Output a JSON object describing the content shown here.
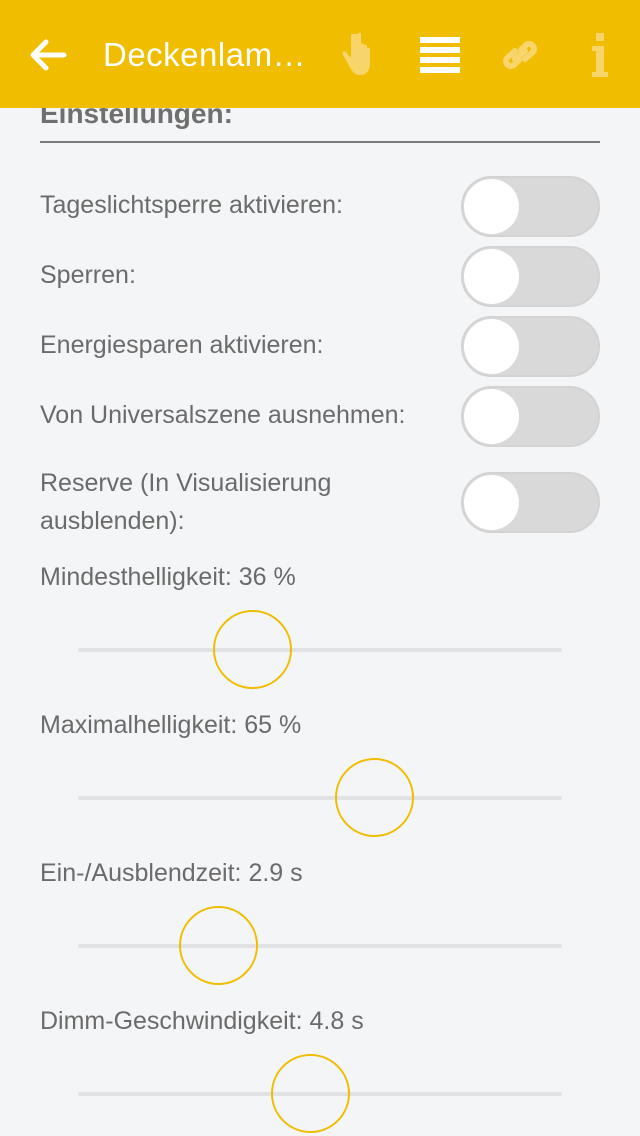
{
  "header": {
    "title": "Deckenlam…",
    "icons": [
      "arrow-left-icon",
      "hand-pointer-icon",
      "list-icon",
      "link-icon",
      "info-icon"
    ],
    "accent": "#f0bd00"
  },
  "section_title": "Einstellungen:",
  "toggles": [
    {
      "label": "Tageslichtsperre aktivieren:",
      "on": false
    },
    {
      "label": "Sperren:",
      "on": false
    },
    {
      "label": "Energiesparen aktivieren:",
      "on": false
    },
    {
      "label": "Von Universalszene ausnehmen:",
      "on": false
    },
    {
      "label": "Reserve (In Visualisierung ausblenden):",
      "on": false
    }
  ],
  "sliders": [
    {
      "label": "Mindesthelligkeit: 36 %",
      "value": 36,
      "min": 0,
      "max": 100
    },
    {
      "label": "Maximalhelligkeit: 65 %",
      "value": 65,
      "min": 10,
      "max": 100
    },
    {
      "label": "Ein-/Ausblendzeit: 2.9 s",
      "value": 2.9,
      "min": 0,
      "max": 10
    },
    {
      "label": "Dimm-Geschwindigkeit: 4.8 s",
      "value": 4.8,
      "min": 0,
      "max": 10
    }
  ]
}
